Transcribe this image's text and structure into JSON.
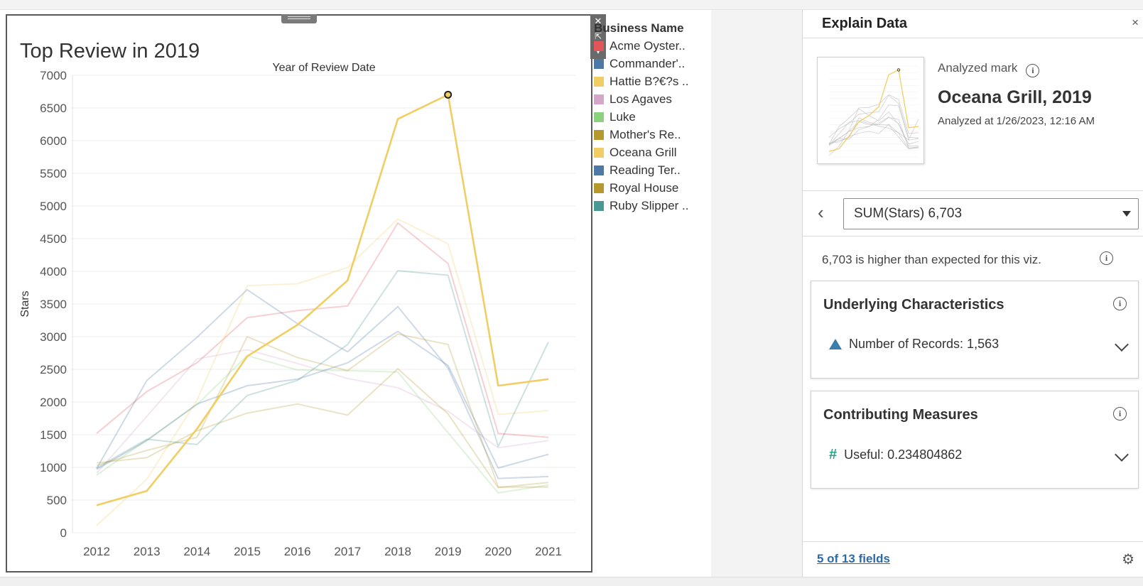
{
  "chart_data": {
    "type": "line",
    "title": "Top Review in 2019",
    "xlabel": "Year of Review Date",
    "ylabel": "Stars",
    "x": [
      "2012",
      "2013",
      "2014",
      "2015",
      "2016",
      "2017",
      "2018",
      "2019",
      "2020",
      "2021"
    ],
    "y_ticks": [
      0,
      500,
      1000,
      1500,
      2000,
      2500,
      3000,
      3500,
      4000,
      4500,
      5000,
      5500,
      6000,
      6500,
      7000
    ],
    "ylim": [
      0,
      7000
    ],
    "grid": true,
    "highlight_series": "Oceana Grill",
    "highlight_point": {
      "x": "2019",
      "y": 6703
    },
    "series": [
      {
        "name": "Acme Oyster..",
        "color": "#e15759",
        "values": [
          1520,
          2160,
          2600,
          3290,
          3400,
          3470,
          4740,
          4120,
          1520,
          1460
        ]
      },
      {
        "name": "Commander'..",
        "color": "#4e79a7",
        "values": [
          980,
          2330,
          2990,
          3720,
          3200,
          2770,
          3460,
          2520,
          830,
          860
        ]
      },
      {
        "name": "Hattie B?€?s ..",
        "color": "#f1ce63",
        "values": [
          110,
          820,
          2030,
          3780,
          3810,
          4060,
          4800,
          4420,
          1810,
          1870
        ]
      },
      {
        "name": "Los Agaves",
        "color": "#d4a6c8",
        "values": [
          910,
          1780,
          2660,
          2800,
          2590,
          2360,
          2220,
          1860,
          1300,
          1410
        ]
      },
      {
        "name": "Luke",
        "color": "#8cd17d",
        "values": [
          880,
          1420,
          1960,
          2710,
          2490,
          2480,
          2460,
          1530,
          610,
          730
        ]
      },
      {
        "name": "Mother's Re..",
        "color": "#b6992d",
        "values": [
          1070,
          1150,
          1560,
          1830,
          1970,
          1800,
          2510,
          1820,
          690,
          770
        ]
      },
      {
        "name": "Oceana Grill",
        "color": "#f1ce63",
        "values": [
          420,
          640,
          1590,
          2700,
          3180,
          3860,
          6330,
          6703,
          2250,
          2350
        ]
      },
      {
        "name": "Reading Ter..",
        "color": "#4e79a7",
        "values": [
          970,
          1410,
          1970,
          2250,
          2350,
          2600,
          3080,
          2560,
          990,
          1200
        ]
      },
      {
        "name": "Royal House",
        "color": "#b6992d",
        "values": [
          1030,
          1260,
          1460,
          3000,
          2680,
          2480,
          3040,
          2880,
          700,
          700
        ]
      },
      {
        "name": "Ruby Slipper ..",
        "color": "#499894",
        "values": [
          990,
          1430,
          1350,
          2100,
          2330,
          2880,
          4010,
          3940,
          1320,
          2920
        ]
      }
    ]
  },
  "legend": {
    "title": "Business Name"
  },
  "float_buttons": {
    "close": "✕",
    "popout": "⇱",
    "menu": "▾"
  },
  "panel": {
    "title": "Explain Data",
    "close_label": "×",
    "analyzed_mark_label": "Analyzed mark",
    "mark_name": "Oceana Grill, 2019",
    "analyzed_at": "Analyzed at 1/26/2023, 12:16 AM",
    "back_label": "‹",
    "measure": "SUM(Stars)  6,703",
    "summary": "6,703 is higher than expected for this viz.",
    "info_glyph": "i",
    "cards": [
      {
        "title": "Underlying Characteristics",
        "row": "Number of Records: 1,563",
        "icon": "triangle-icon"
      },
      {
        "title": "Contributing Measures",
        "row": "Useful: 0.234804862",
        "icon": "hash-icon"
      }
    ],
    "fields_link": "5 of 13 fields",
    "gear": "⚙"
  },
  "colors": {
    "highlight": "#f1ce63",
    "link": "#2d6aa8",
    "accent_teal": "#2aa18a"
  }
}
